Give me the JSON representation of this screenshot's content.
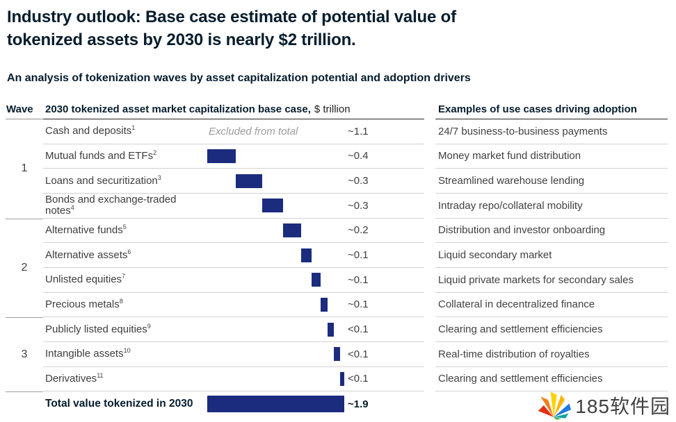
{
  "page": {
    "title_line1": "Industry outlook: Base case estimate of potential value of",
    "title_line2": "tokenized assets by 2030 is nearly $2 trillion.",
    "subtitle": "An analysis of tokenization waves by asset capitalization potential and adoption drivers"
  },
  "table": {
    "wave_header": "Wave",
    "main_header_bold": "2030 tokenized asset market capitalization base case,",
    "main_header_unit": "$ trillion",
    "examples_header": "Examples of use cases driving adoption"
  },
  "chart_data": {
    "type": "bar",
    "subtype": "waterfall",
    "title": "2030 tokenized asset market capitalization base case, $ trillion",
    "unit": "$ trillion",
    "xlim": [
      0,
      1.9
    ],
    "bar_color": "#1b2c7e",
    "grid": false,
    "waves": [
      {
        "label": "1",
        "rows": [
          0,
          3
        ]
      },
      {
        "label": "2",
        "rows": [
          4,
          7
        ]
      },
      {
        "label": "3",
        "rows": [
          8,
          10
        ]
      }
    ],
    "rows": [
      {
        "label": "Cash and deposits",
        "footnote": "1",
        "note": "Excluded from total",
        "value_label": "~1.1",
        "value_estimate": 1.1,
        "bar_start": null,
        "bar_width": null,
        "use_case": "24/7 business-to-business payments"
      },
      {
        "label": "Mutual funds and ETFs",
        "footnote": "2",
        "note": "",
        "value_label": "~0.4",
        "value_estimate": 0.4,
        "bar_start": 0.0,
        "bar_width": 0.4,
        "use_case": "Money market fund distribution"
      },
      {
        "label": "Loans and securitization",
        "footnote": "3",
        "note": "",
        "value_label": "~0.3",
        "value_estimate": 0.3,
        "bar_start": 0.4,
        "bar_width": 0.36,
        "use_case": "Streamlined warehouse lending"
      },
      {
        "label": "Bonds and exchange-traded notes",
        "footnote": "4",
        "note": "",
        "value_label": "~0.3",
        "value_estimate": 0.3,
        "bar_start": 0.76,
        "bar_width": 0.29,
        "use_case": "Intraday repo/collateral mobility"
      },
      {
        "label": "Alternative funds",
        "footnote": "5",
        "note": "",
        "value_label": "~0.2",
        "value_estimate": 0.2,
        "bar_start": 1.05,
        "bar_width": 0.25,
        "use_case": "Distribution and investor onboarding"
      },
      {
        "label": "Alternative assets",
        "footnote": "6",
        "note": "",
        "value_label": "~0.1",
        "value_estimate": 0.15,
        "bar_start": 1.3,
        "bar_width": 0.15,
        "use_case": "Liquid secondary market"
      },
      {
        "label": "Unlisted equities",
        "footnote": "7",
        "note": "",
        "value_label": "~0.1",
        "value_estimate": 0.12,
        "bar_start": 1.45,
        "bar_width": 0.12,
        "use_case": "Liquid private markets for secondary sales"
      },
      {
        "label": "Precious metals",
        "footnote": "8",
        "note": "",
        "value_label": "~0.1",
        "value_estimate": 0.1,
        "bar_start": 1.57,
        "bar_width": 0.1,
        "use_case": "Collateral in decentralized finance"
      },
      {
        "label": "Publicly listed equities",
        "footnote": "9",
        "note": "",
        "value_label": "<0.1",
        "value_estimate": 0.09,
        "bar_start": 1.67,
        "bar_width": 0.09,
        "use_case": "Clearing and settlement efficiencies"
      },
      {
        "label": "Intangible assets",
        "footnote": "10",
        "note": "",
        "value_label": "<0.1",
        "value_estimate": 0.08,
        "bar_start": 1.76,
        "bar_width": 0.08,
        "use_case": "Real-time distribution of royalties"
      },
      {
        "label": "Derivatives",
        "footnote": "11",
        "note": "",
        "value_label": "<0.1",
        "value_estimate": 0.06,
        "bar_start": 1.84,
        "bar_width": 0.06,
        "use_case": "Clearing and settlement efficiencies"
      },
      {
        "label": "Total value tokenized in 2030",
        "footnote": "",
        "note": "",
        "value_label": "~1.9",
        "value_estimate": 1.9,
        "bar_start": 0.0,
        "bar_width": 1.9,
        "use_case": "",
        "is_total": true
      }
    ]
  },
  "watermark": {
    "text": "185软件园",
    "logo_colors": [
      "#e53012",
      "#f0801a",
      "#ffd200",
      "#ffb400",
      "#1f7ae0",
      "#12a5a0",
      "#3aaa35"
    ]
  }
}
